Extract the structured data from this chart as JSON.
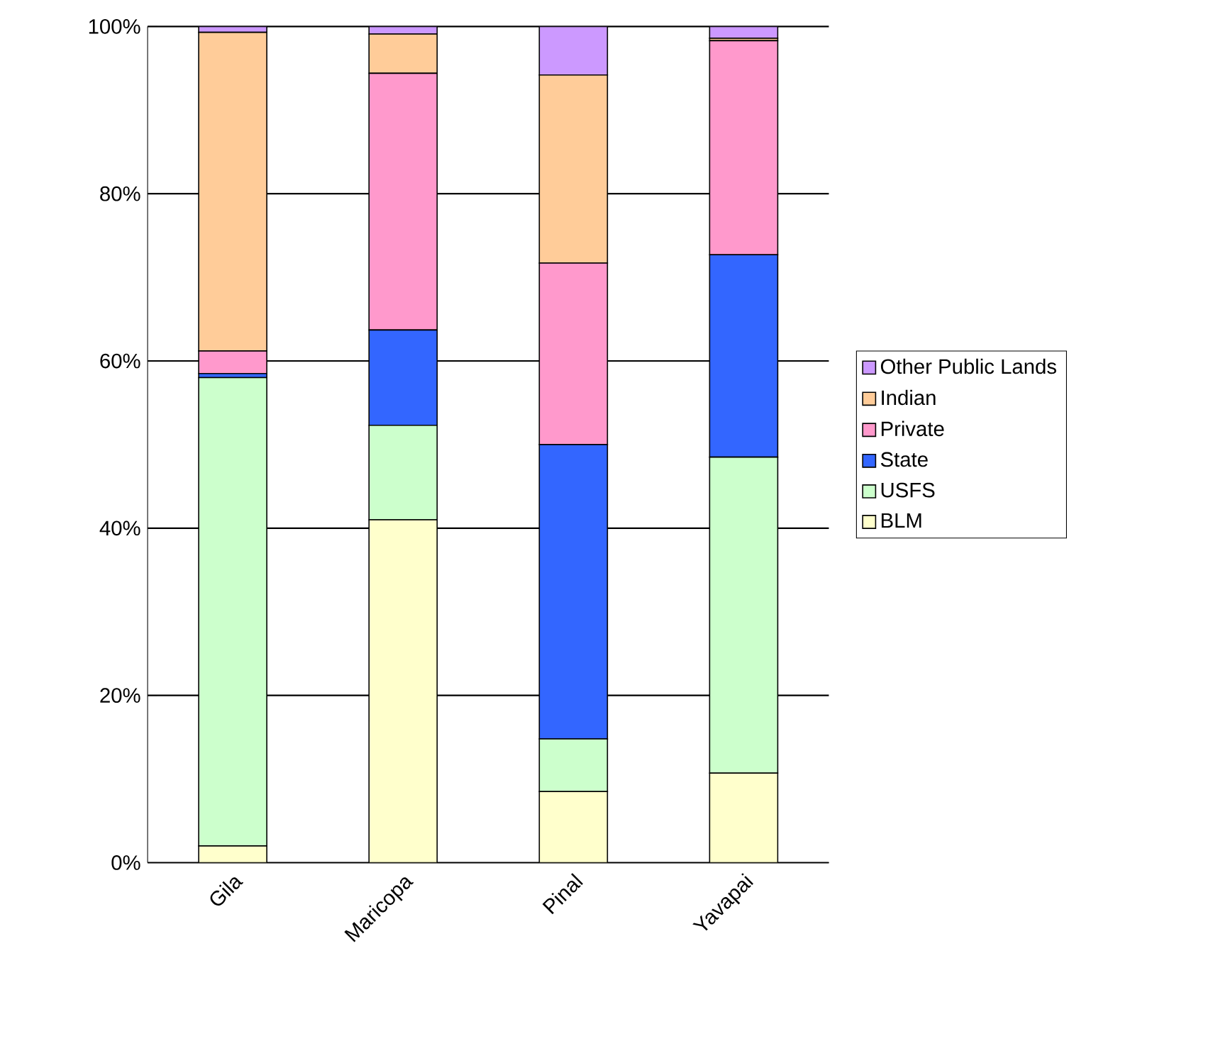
{
  "chart_data": {
    "type": "bar",
    "stacked": true,
    "categories": [
      "Gila",
      "Maricopa",
      "Pinal",
      "Yavapai"
    ],
    "series": [
      {
        "name": "BLM",
        "color": "#ffffcc",
        "values": [
          2,
          41,
          8.5,
          10.7
        ]
      },
      {
        "name": "USFS",
        "color": "#ccffcc",
        "values": [
          56,
          11.3,
          6.3,
          37.8
        ]
      },
      {
        "name": "State",
        "color": "#3366ff",
        "values": [
          0.5,
          11.4,
          35.2,
          24.2
        ]
      },
      {
        "name": "Private",
        "color": "#ff99cc",
        "values": [
          2.7,
          30.7,
          21.7,
          25.6
        ]
      },
      {
        "name": "Indian",
        "color": "#ffcc99",
        "values": [
          38.1,
          4.7,
          22.5,
          0.3
        ]
      },
      {
        "name": "Other Public Lands",
        "color": "#cc99ff",
        "values": [
          0.7,
          0.9,
          5.8,
          1.4
        ]
      }
    ],
    "ylim": [
      0,
      100
    ],
    "yticks": [
      {
        "value": 0,
        "label": "0%"
      },
      {
        "value": 20,
        "label": "20%"
      },
      {
        "value": 40,
        "label": "40%"
      },
      {
        "value": 60,
        "label": "60%"
      },
      {
        "value": 80,
        "label": "80%"
      },
      {
        "value": 100,
        "label": "100%"
      }
    ],
    "grid": "y",
    "legend": "right"
  }
}
